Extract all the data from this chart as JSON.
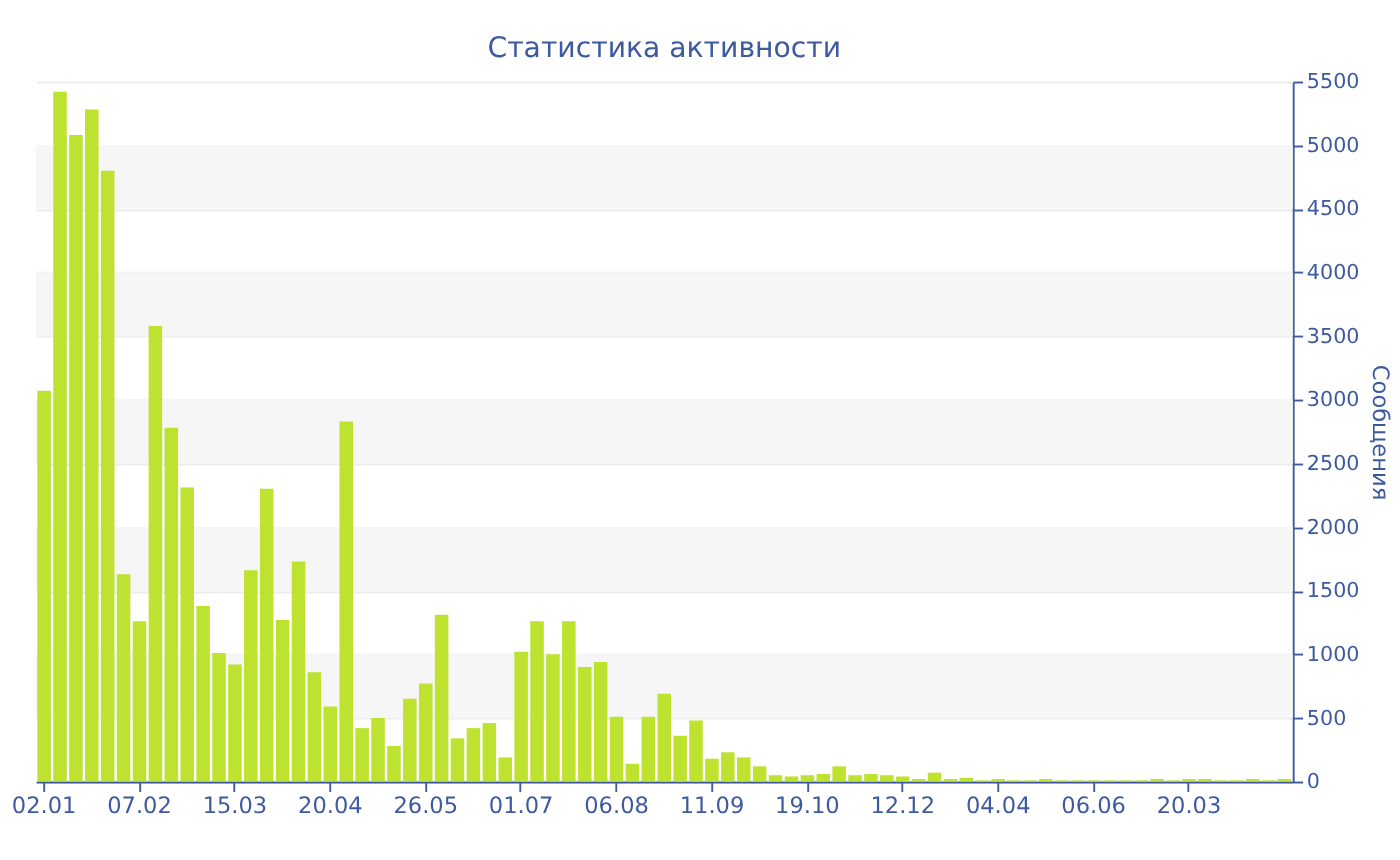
{
  "chart_data": {
    "type": "bar",
    "title": "Статистика активности",
    "ylabel": "Сообщения",
    "categories": [
      "02.01",
      null,
      null,
      null,
      null,
      null,
      "07.02",
      null,
      null,
      null,
      null,
      null,
      "15.03",
      null,
      null,
      null,
      null,
      null,
      "20.04",
      null,
      null,
      null,
      null,
      null,
      "26.05",
      null,
      null,
      null,
      null,
      null,
      "01.07",
      null,
      null,
      null,
      null,
      null,
      "06.08",
      null,
      null,
      null,
      null,
      null,
      "11.09",
      null,
      null,
      null,
      null,
      null,
      "19.10",
      null,
      null,
      null,
      null,
      null,
      "12.12",
      null,
      null,
      null,
      null,
      null,
      "04.04",
      null,
      null,
      null,
      null,
      null,
      "06.06",
      null,
      null,
      null,
      null,
      null,
      "20.03",
      null,
      null,
      null,
      null,
      null,
      null
    ],
    "values": [
      3070,
      5420,
      5080,
      5280,
      4800,
      1630,
      1260,
      3580,
      2780,
      2310,
      1380,
      1010,
      920,
      1660,
      2300,
      1270,
      1730,
      860,
      590,
      2830,
      420,
      500,
      280,
      650,
      770,
      1310,
      340,
      420,
      460,
      190,
      1020,
      1260,
      1000,
      1260,
      900,
      940,
      510,
      140,
      510,
      690,
      360,
      480,
      180,
      230,
      190,
      120,
      50,
      40,
      50,
      60,
      120,
      50,
      60,
      50,
      40,
      20,
      70,
      20,
      30,
      10,
      20,
      10,
      10,
      20,
      10,
      10,
      10,
      10,
      10,
      10,
      20,
      10,
      20,
      20,
      10,
      10,
      20,
      10,
      20
    ],
    "color": "#bde22f",
    "ylim": [
      0,
      5500
    ],
    "yticks": [
      0,
      500,
      1000,
      1500,
      2000,
      2500,
      3000,
      3500,
      4000,
      4500,
      5000,
      5500
    ],
    "grid": "y"
  }
}
